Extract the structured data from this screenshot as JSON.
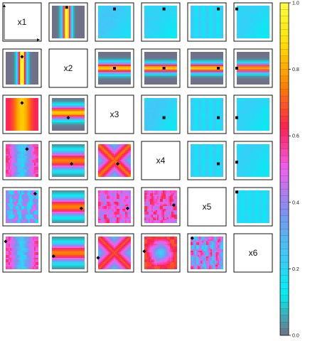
{
  "chart_data": {
    "type": "heatmap",
    "variables": [
      "x1",
      "x2",
      "x3",
      "x4",
      "x5",
      "x6"
    ],
    "colorbar": {
      "range": [
        0,
        1
      ],
      "ticks": [
        "1.0",
        "0.8",
        "0.6",
        "0.4",
        "0.2",
        "0.0"
      ],
      "colors": [
        "#707088",
        "#00f0f0",
        "#40c8f8",
        "#8090f0",
        "#f060f0",
        "#ff2050",
        "#ff8000",
        "#ffe000",
        "#ffff40"
      ],
      "bands": 50
    },
    "background_color": "#707088",
    "point_color": "#000000",
    "panels": [
      {
        "row": 1,
        "col": 2,
        "kind": "vband",
        "center": 0.45,
        "width": 0.14,
        "fg": 1.0,
        "bg": 0.0,
        "point": [
          0.45,
          0.05
        ],
        "marker": "square"
      },
      {
        "row": 1,
        "col": 3,
        "kind": "flat",
        "fg": 0.25,
        "bg": 0.18,
        "point": [
          0.5,
          0.1
        ],
        "marker": "square"
      },
      {
        "row": 1,
        "col": 4,
        "kind": "flat",
        "fg": 0.22,
        "bg": 0.15,
        "point": [
          0.6,
          0.1
        ],
        "marker": "square"
      },
      {
        "row": 1,
        "col": 5,
        "kind": "stripes",
        "fg": 0.25,
        "bg": 0.15,
        "point": [
          0.85,
          0.1
        ],
        "marker": "square"
      },
      {
        "row": 1,
        "col": 6,
        "kind": "flat",
        "fg": 0.22,
        "bg": 0.15,
        "point": [
          0.0,
          0.1
        ],
        "marker": "square"
      },
      {
        "row": 2,
        "col": 1,
        "kind": "vband",
        "center": 0.5,
        "width": 0.14,
        "fg": 1.0,
        "bg": 0.0,
        "point": [
          0.5,
          0.15
        ],
        "marker": "diamond"
      },
      {
        "row": 2,
        "col": 3,
        "kind": "hband",
        "center": 0.5,
        "width": 0.18,
        "fg": 0.85,
        "bg": 0.0,
        "point": [
          0.5,
          0.5
        ],
        "marker": "square"
      },
      {
        "row": 2,
        "col": 4,
        "kind": "hband",
        "center": 0.5,
        "width": 0.16,
        "fg": 0.85,
        "bg": 0.0,
        "point": [
          0.6,
          0.5
        ],
        "marker": "square"
      },
      {
        "row": 2,
        "col": 5,
        "kind": "hband",
        "center": 0.5,
        "width": 0.16,
        "fg": 0.85,
        "bg": 0.0,
        "point": [
          0.85,
          0.5
        ],
        "marker": "square"
      },
      {
        "row": 2,
        "col": 6,
        "kind": "hband",
        "center": 0.5,
        "width": 0.16,
        "fg": 0.8,
        "bg": 0.0,
        "point": [
          0.0,
          0.5
        ],
        "marker": "square"
      },
      {
        "row": 3,
        "col": 1,
        "kind": "vband",
        "center": 0.5,
        "width": 0.3,
        "fg": 0.85,
        "bg": 0.6,
        "point": [
          0.5,
          0.15
        ],
        "marker": "diamond"
      },
      {
        "row": 3,
        "col": 2,
        "kind": "hband",
        "center": 0.45,
        "width": 0.22,
        "fg": 0.85,
        "bg": 0.0,
        "point": [
          0.5,
          0.6
        ],
        "marker": "diamond"
      },
      {
        "row": 3,
        "col": 4,
        "kind": "flat",
        "fg": 0.25,
        "bg": 0.15,
        "point": [
          0.6,
          0.6
        ],
        "marker": "square"
      },
      {
        "row": 3,
        "col": 5,
        "kind": "stripes",
        "fg": 0.25,
        "bg": 0.15,
        "point": [
          0.85,
          0.6
        ],
        "marker": "square"
      },
      {
        "row": 3,
        "col": 6,
        "kind": "flat",
        "fg": 0.22,
        "bg": 0.15,
        "point": [
          0.0,
          0.6
        ],
        "marker": "square"
      },
      {
        "row": 4,
        "col": 1,
        "kind": "vvalley",
        "fg": 0.55,
        "bg": 0.2,
        "point": [
          0.65,
          0.15
        ],
        "marker": "diamond"
      },
      {
        "row": 4,
        "col": 2,
        "kind": "hband",
        "center": 0.5,
        "width": 0.3,
        "fg": 0.75,
        "bg": 0.0,
        "point": [
          0.6,
          0.6
        ],
        "marker": "diamond"
      },
      {
        "row": 4,
        "col": 3,
        "kind": "xshape",
        "fg": 0.75,
        "bg": 0.3,
        "point": [
          0.6,
          0.6
        ],
        "marker": "diamond"
      },
      {
        "row": 4,
        "col": 5,
        "kind": "stripes",
        "fg": 0.25,
        "bg": 0.15,
        "point": [
          0.85,
          0.6
        ],
        "marker": "square"
      },
      {
        "row": 4,
        "col": 6,
        "kind": "flat",
        "fg": 0.22,
        "bg": 0.15,
        "point": [
          0.0,
          0.55
        ],
        "marker": "square"
      },
      {
        "row": 5,
        "col": 1,
        "kind": "noisy",
        "fg": 0.45,
        "bg": 0.2,
        "point": [
          0.9,
          0.1
        ],
        "marker": "diamond"
      },
      {
        "row": 5,
        "col": 2,
        "kind": "hband",
        "center": 0.5,
        "width": 0.3,
        "fg": 0.75,
        "bg": 0.0,
        "point": [
          0.9,
          0.55
        ],
        "marker": "diamond"
      },
      {
        "row": 5,
        "col": 3,
        "kind": "noisy",
        "fg": 0.55,
        "bg": 0.45,
        "point": [
          0.9,
          0.55
        ],
        "marker": "diamond"
      },
      {
        "row": 5,
        "col": 4,
        "kind": "noisy",
        "fg": 0.6,
        "bg": 0.45,
        "point": [
          0.9,
          0.45
        ],
        "marker": "diamond"
      },
      {
        "row": 5,
        "col": 6,
        "kind": "stripes",
        "fg": 0.22,
        "bg": 0.15,
        "point": [
          0.0,
          0.05
        ],
        "marker": "square"
      },
      {
        "row": 6,
        "col": 1,
        "kind": "vvalley",
        "fg": 0.55,
        "bg": 0.2,
        "point": [
          0.0,
          0.15
        ],
        "marker": "diamond"
      },
      {
        "row": 6,
        "col": 2,
        "kind": "hband",
        "center": 0.5,
        "width": 0.3,
        "fg": 0.75,
        "bg": 0.0,
        "point": [
          0.05,
          0.6
        ],
        "marker": "diamond"
      },
      {
        "row": 6,
        "col": 3,
        "kind": "xshape",
        "fg": 0.7,
        "bg": 0.3,
        "point": [
          0.0,
          0.65
        ],
        "marker": "diamond"
      },
      {
        "row": 6,
        "col": 4,
        "kind": "blob",
        "fg": 0.2,
        "bg": 0.65,
        "point": [
          0.0,
          0.45
        ],
        "marker": "diamond"
      },
      {
        "row": 6,
        "col": 5,
        "kind": "noisy",
        "fg": 0.55,
        "bg": 0.25,
        "point": [
          0.05,
          0.05
        ],
        "marker": "diamond"
      }
    ]
  }
}
